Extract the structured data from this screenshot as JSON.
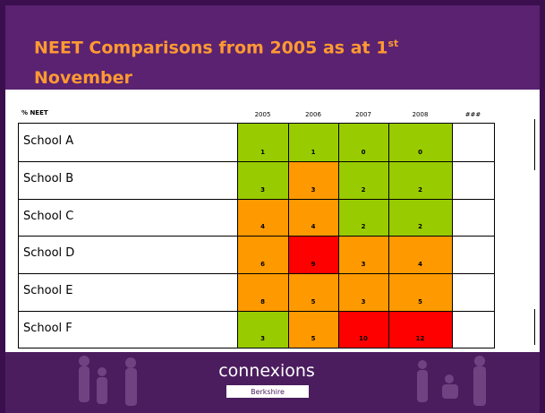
{
  "header": {
    "title_start": "NEET Comparisons from 2005 as at 1",
    "title_superscript": "st",
    "title_end": "November"
  },
  "table": {
    "corner": "% NEET",
    "columns": [
      "2005",
      "2006",
      "2007",
      "2008",
      "###"
    ],
    "rows": [
      {
        "label": "School A",
        "cells": [
          {
            "value": 1,
            "color": "#99cc00"
          },
          {
            "value": 1,
            "color": "#99cc00"
          },
          {
            "value": 0,
            "color": "#99cc00"
          },
          {
            "value": 0,
            "color": "#99cc00"
          }
        ]
      },
      {
        "label": "School B",
        "cells": [
          {
            "value": 3,
            "color": "#99cc00"
          },
          {
            "value": 3,
            "color": "#ff9900"
          },
          {
            "value": 2,
            "color": "#99cc00"
          },
          {
            "value": 2,
            "color": "#99cc00"
          }
        ]
      },
      {
        "label": "School C",
        "cells": [
          {
            "value": 4,
            "color": "#ff9900"
          },
          {
            "value": 4,
            "color": "#ff9900"
          },
          {
            "value": 2,
            "color": "#99cc00"
          },
          {
            "value": 2,
            "color": "#99cc00"
          }
        ]
      },
      {
        "label": "School D",
        "cells": [
          {
            "value": 6,
            "color": "#ff9900"
          },
          {
            "value": 9,
            "color": "#ff0000"
          },
          {
            "value": 3,
            "color": "#ff9900"
          },
          {
            "value": 4,
            "color": "#ff9900"
          }
        ]
      },
      {
        "label": "School E",
        "cells": [
          {
            "value": 8,
            "color": "#ff9900"
          },
          {
            "value": 5,
            "color": "#ff9900"
          },
          {
            "value": 3,
            "color": "#ff9900"
          },
          {
            "value": 5,
            "color": "#ff9900"
          }
        ]
      },
      {
        "label": "School F",
        "cells": [
          {
            "value": 3,
            "color": "#99cc00"
          },
          {
            "value": 5,
            "color": "#ff9900"
          },
          {
            "value": 10,
            "color": "#ff0000"
          },
          {
            "value": 12,
            "color": "#ff0000"
          }
        ]
      }
    ]
  },
  "footer": {
    "logo": "connexions",
    "region": "Berkshire"
  }
}
